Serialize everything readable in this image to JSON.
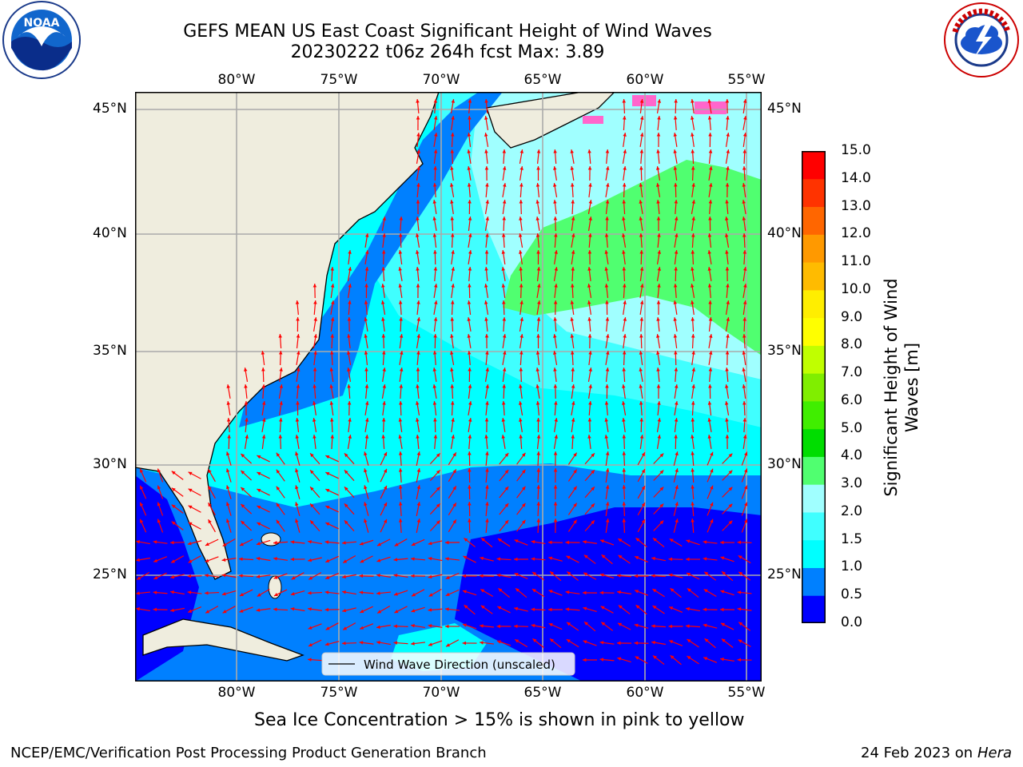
{
  "header": {
    "title_line1": "GEFS MEAN US East Coast Significant Height of Wind Waves",
    "title_line2": "20230222 t06z 264h fcst   Max: 3.89"
  },
  "logos": {
    "left": {
      "icon": "noaa-logo",
      "text": "NOAA",
      "ring_text": "NATIONAL OCEANIC AND ATMOSPHERIC ADMINISTRATION · U.S. DEPARTMENT OF COMMERCE"
    },
    "right": {
      "icon": "nws-logo",
      "ring_text": "NATIONAL WEATHER SERVICE"
    }
  },
  "map": {
    "lon_labels": [
      "80°W",
      "75°W",
      "70°W",
      "65°W",
      "60°W",
      "55°W"
    ],
    "lat_labels": [
      "45°N",
      "40°N",
      "35°N",
      "30°N",
      "25°N"
    ],
    "legend_label": "Wind Wave Direction (unscaled)",
    "arrow_color": "#ff0000",
    "land_color": "#efedde"
  },
  "colorbar": {
    "label_line1": "Significant Height of Wind",
    "label_line2": "Waves [m]",
    "ticks": [
      "15.0",
      "14.0",
      "13.0",
      "12.0",
      "11.0",
      "10.0",
      "9.0",
      "8.0",
      "7.0",
      "6.0",
      "5.0",
      "4.0",
      "3.0",
      "2.0",
      "1.5",
      "1.0",
      "0.5",
      "0.0"
    ],
    "colors_bottom_to_top": [
      "#0000ff",
      "#0080ff",
      "#00ffff",
      "#40ffff",
      "#a0ffff",
      "#50ff70",
      "#00dd00",
      "#40ee00",
      "#80ee00",
      "#c0ff00",
      "#ffff00",
      "#ffee00",
      "#ffbb00",
      "#ff9900",
      "#ff6600",
      "#ff3300",
      "#ff0000"
    ]
  },
  "footer": {
    "sea_ice_note": "Sea Ice Concentration > 15% is shown in pink to yellow",
    "credit": "NCEP/EMC/Verification Post Processing Product Generation Branch",
    "date": "24 Feb 2023 on",
    "machine": "Hera"
  }
}
